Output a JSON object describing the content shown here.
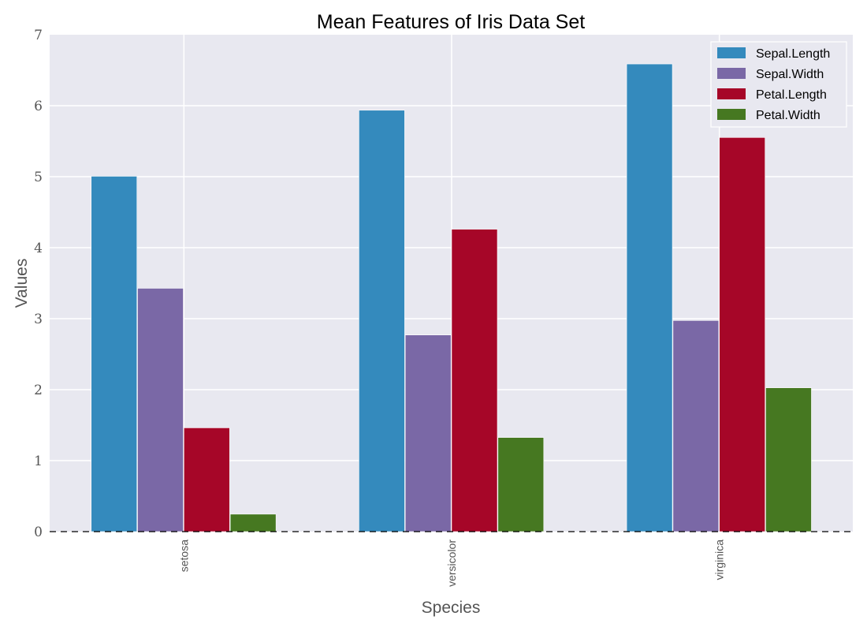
{
  "chart_data": {
    "type": "bar",
    "title": "Mean Features of Iris Data Set",
    "xlabel": "Species",
    "ylabel": "Values",
    "categories": [
      "setosa",
      "versicolor",
      "virginica"
    ],
    "series": [
      {
        "name": "Sepal.Length",
        "values": [
          5.006,
          5.936,
          6.588
        ],
        "color": "#348ABD"
      },
      {
        "name": "Sepal.Width",
        "values": [
          3.428,
          2.77,
          2.974
        ],
        "color": "#7A68A6"
      },
      {
        "name": "Petal.Length",
        "values": [
          1.462,
          4.26,
          5.552
        ],
        "color": "#A60628"
      },
      {
        "name": "Petal.Width",
        "values": [
          0.246,
          1.326,
          2.026
        ],
        "color": "#467821"
      }
    ],
    "ylim": [
      0,
      7
    ],
    "yticks": [
      "0",
      "1",
      "2",
      "3",
      "4",
      "5",
      "6",
      "7"
    ],
    "grid": true,
    "legend_position": "top-right",
    "background_color": "#E8E8F0",
    "grid_color": "#FFFFFF"
  }
}
